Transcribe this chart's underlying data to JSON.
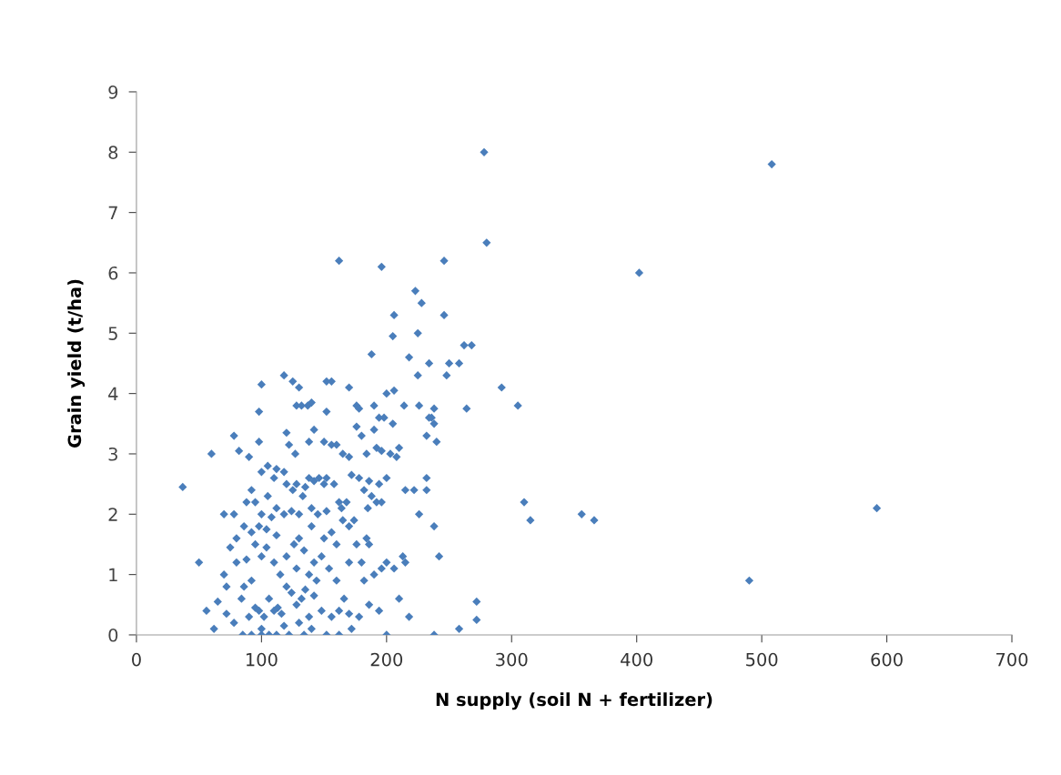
{
  "chart_data": {
    "type": "scatter",
    "xlabel": "N supply (soil N + fertilizer)",
    "ylabel": "Grain yield (t/ha)",
    "xlim": [
      0,
      700
    ],
    "ylim": [
      0,
      9
    ],
    "xticks": [
      0,
      100,
      200,
      300,
      400,
      500,
      600,
      700
    ],
    "yticks": [
      0,
      1,
      2,
      3,
      4,
      5,
      6,
      7,
      8,
      9
    ],
    "grid": false,
    "legend": false,
    "marker": "diamond",
    "series": [
      {
        "color": "#4a7ebb",
        "x": [
          37,
          50,
          60,
          56,
          62,
          162,
          196,
          246,
          278,
          280,
          508,
          402,
          292,
          305,
          310,
          315,
          356,
          366,
          490,
          592,
          264,
          262,
          268,
          258,
          250,
          246,
          248,
          223,
          228,
          206,
          205,
          188,
          225,
          225,
          218,
          234,
          238,
          236,
          238,
          240,
          232,
          234,
          226,
          214,
          206,
          200,
          232,
          232,
          238,
          242,
          226,
          213,
          215,
          210,
          218,
          238,
          258,
          272,
          272,
          200,
          100,
          118,
          125,
          130,
          152,
          156,
          170,
          98,
          128,
          132,
          140,
          137,
          152,
          176,
          178,
          190,
          198,
          194,
          205,
          190,
          176,
          180,
          78,
          82,
          90,
          98,
          120,
          122,
          127,
          138,
          142,
          150,
          156,
          160,
          165,
          170,
          184,
          192,
          196,
          203,
          210,
          208,
          215,
          222,
          200,
          194,
          186,
          188,
          70,
          78,
          88,
          92,
          95,
          100,
          105,
          110,
          112,
          118,
          120,
          125,
          128,
          133,
          135,
          138,
          142,
          146,
          150,
          152,
          158,
          162,
          164,
          168,
          172,
          178,
          182,
          185,
          192,
          196,
          100,
          105,
          112,
          118,
          124,
          130,
          140,
          145,
          152,
          86,
          92,
          98,
          104,
          112,
          108,
          75,
          80,
          80,
          88,
          95,
          100,
          104,
          110,
          115,
          120,
          126,
          130,
          134,
          140,
          142,
          148,
          150,
          156,
          160,
          165,
          170,
          174,
          176,
          180,
          184,
          186,
          190,
          196,
          200,
          206,
          128,
          138,
          144,
          154,
          160,
          170,
          182,
          70,
          72,
          86,
          92,
          65,
          72,
          78,
          84,
          90,
          95,
          98,
          102,
          106,
          110,
          113,
          116,
          120,
          124,
          128,
          132,
          135,
          138,
          142,
          148,
          156,
          162,
          170,
          178,
          186,
          194,
          166,
          172,
          85,
          92,
          100,
          106,
          112,
          122,
          134,
          152,
          162,
          140,
          100,
          118,
          130
        ],
        "values": [
          2.45,
          1.2,
          3.0,
          0.4,
          0.1,
          6.2,
          6.1,
          6.2,
          8.0,
          6.5,
          7.8,
          6.0,
          4.1,
          3.8,
          2.2,
          1.9,
          2.0,
          1.9,
          0.9,
          2.1,
          3.75,
          4.8,
          4.8,
          4.5,
          4.5,
          5.3,
          4.3,
          5.7,
          5.5,
          5.3,
          4.95,
          4.65,
          4.3,
          5.0,
          4.6,
          4.5,
          3.75,
          3.6,
          3.5,
          3.2,
          3.3,
          3.6,
          3.8,
          3.8,
          4.05,
          4.0,
          2.6,
          2.4,
          1.8,
          1.3,
          2.0,
          1.3,
          1.2,
          0.6,
          0.3,
          0.0,
          0.1,
          0.55,
          0.25,
          0.0,
          4.15,
          4.3,
          4.2,
          4.1,
          4.2,
          4.2,
          4.1,
          3.7,
          3.8,
          3.8,
          3.85,
          3.8,
          3.7,
          3.8,
          3.75,
          3.8,
          3.6,
          3.6,
          3.5,
          3.4,
          3.45,
          3.3,
          3.3,
          3.05,
          2.95,
          3.2,
          3.35,
          3.15,
          3.0,
          3.2,
          3.4,
          3.2,
          3.15,
          3.15,
          3.0,
          2.95,
          3.0,
          3.1,
          3.05,
          3.0,
          3.1,
          2.95,
          2.4,
          2.4,
          2.6,
          2.5,
          2.55,
          2.3,
          2.0,
          2.0,
          2.2,
          2.4,
          2.2,
          2.7,
          2.8,
          2.6,
          2.75,
          2.7,
          2.5,
          2.4,
          2.5,
          2.3,
          2.45,
          2.6,
          2.55,
          2.6,
          2.5,
          2.6,
          2.5,
          2.2,
          2.1,
          2.2,
          2.65,
          2.6,
          2.4,
          2.1,
          2.2,
          2.2,
          2.0,
          2.3,
          2.1,
          2.0,
          2.05,
          2.0,
          2.1,
          2.0,
          2.05,
          1.8,
          1.7,
          1.8,
          1.75,
          1.65,
          1.95,
          1.45,
          1.6,
          1.2,
          1.25,
          1.5,
          1.3,
          1.45,
          1.2,
          1.0,
          1.3,
          1.5,
          1.6,
          1.4,
          1.8,
          1.2,
          1.3,
          1.6,
          1.7,
          1.5,
          1.9,
          1.8,
          1.9,
          1.5,
          1.2,
          1.6,
          1.5,
          1.0,
          1.1,
          1.2,
          1.1,
          1.1,
          1.0,
          0.9,
          1.1,
          0.9,
          1.2,
          0.9,
          1.0,
          0.8,
          0.8,
          0.9,
          0.55,
          0.35,
          0.2,
          0.6,
          0.3,
          0.45,
          0.4,
          0.3,
          0.6,
          0.4,
          0.45,
          0.35,
          0.8,
          0.7,
          0.5,
          0.6,
          0.75,
          0.3,
          0.65,
          0.4,
          0.3,
          0.4,
          0.35,
          0.3,
          0.5,
          0.4,
          0.6,
          0.1,
          0.0,
          0.0,
          0.0,
          0.0,
          0.0,
          0.0,
          0.0,
          0.0,
          0.0,
          0.1,
          0.1,
          0.15,
          0.2
        ]
      }
    ]
  }
}
